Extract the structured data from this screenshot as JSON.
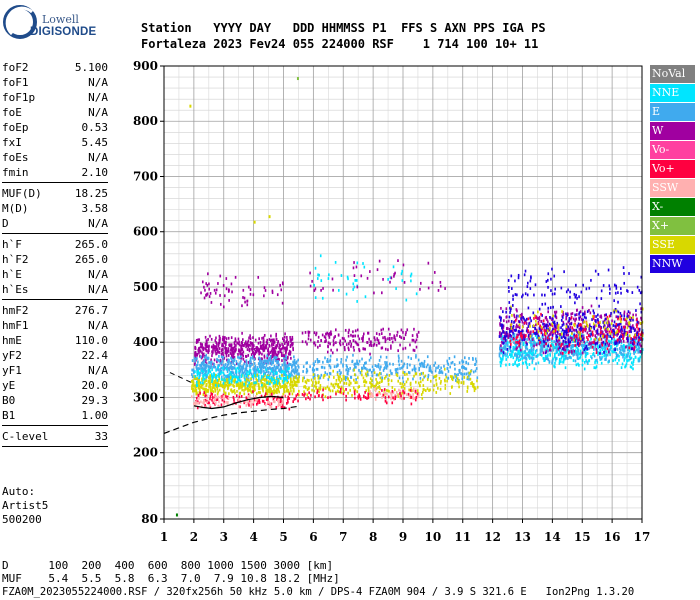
{
  "logo": {
    "line1": "Lowell",
    "line2": "DIGISONDE"
  },
  "header": {
    "line1": "Station   YYYY DAY   DDD HHMMSS P1  FFS S AXN PPS IGA PS",
    "line2": "Fortaleza 2023 Fev24 055 224000 RSF    1 714 100 10+ 11"
  },
  "params": {
    "group1": [
      {
        "label": "foF2",
        "value": "5.100"
      },
      {
        "label": "foF1",
        "value": "N/A"
      },
      {
        "label": "foF1p",
        "value": "N/A"
      },
      {
        "label": "foE",
        "value": "N/A"
      },
      {
        "label": "foEp",
        "value": "0.53"
      },
      {
        "label": "fxI",
        "value": "5.45"
      },
      {
        "label": "foEs",
        "value": "N/A"
      },
      {
        "label": "fmin",
        "value": "2.10"
      }
    ],
    "group2": [
      {
        "label": "MUF(D)",
        "value": "18.25"
      },
      {
        "label": "M(D)",
        "value": "3.58"
      },
      {
        "label": "D",
        "value": "N/A"
      }
    ],
    "group3": [
      {
        "label": "h`F",
        "value": "265.0"
      },
      {
        "label": "h`F2",
        "value": "265.0"
      },
      {
        "label": "h`E",
        "value": "N/A"
      },
      {
        "label": "h`Es",
        "value": "N/A"
      }
    ],
    "group4": [
      {
        "label": "hmF2",
        "value": "276.7"
      },
      {
        "label": "hmF1",
        "value": "N/A"
      },
      {
        "label": "hmE",
        "value": "110.0"
      },
      {
        "label": "yF2",
        "value": "22.4"
      },
      {
        "label": "yF1",
        "value": "N/A"
      },
      {
        "label": "yE",
        "value": "20.0"
      },
      {
        "label": "B0",
        "value": "29.3"
      },
      {
        "label": "B1",
        "value": "1.00"
      }
    ],
    "group5": [
      {
        "label": "C-level",
        "value": "33"
      }
    ]
  },
  "auto": {
    "line1": "Auto:",
    "line2": "Artist5",
    "line3": "500200"
  },
  "bottom": {
    "d_row": "D      100  200  400  600  800 1000 1500 3000 [km]",
    "muf_row": "MUF    5.4  5.5  5.8  6.3  7.0  7.9 10.8 18.2 [MHz]",
    "footer": "FZA0M_2023055224000.RSF / 320fx256h 50 kHz 5.0 km / DPS-4 FZA0M 904 / 3.9 S 321.6 E   Ion2Png 1.3.20"
  },
  "legend": [
    {
      "label": "NoVal",
      "color": "#808080"
    },
    {
      "label": "NNE",
      "color": "#00e5ff"
    },
    {
      "label": "E",
      "color": "#40aaee"
    },
    {
      "label": "W",
      "color": "#a000a0"
    },
    {
      "label": "Vo-",
      "color": "#ff40a0"
    },
    {
      "label": "Vo+",
      "color": "#ff0040"
    },
    {
      "label": "SSW",
      "color": "#ffb0b0"
    },
    {
      "label": "X-",
      "color": "#008000"
    },
    {
      "label": "X+",
      "color": "#80c040"
    },
    {
      "label": "SSE",
      "color": "#d8d800"
    },
    {
      "label": "NNW",
      "color": "#2000e0"
    }
  ],
  "chart_data": {
    "type": "scatter",
    "title": "",
    "xlabel": "",
    "ylabel": "",
    "xlim": [
      1,
      17
    ],
    "ylim": [
      80,
      900
    ],
    "x_ticks": [
      1,
      2,
      3,
      4,
      5,
      6,
      7,
      8,
      9,
      10,
      11,
      12,
      13,
      14,
      15,
      16,
      17
    ],
    "y_ticks": [
      80,
      200,
      300,
      400,
      500,
      600,
      700,
      800,
      900
    ],
    "grid": true,
    "legend_position": "right",
    "clusters": [
      {
        "name": "W",
        "x": [
          2.0,
          5.3
        ],
        "y": [
          360,
          420
        ],
        "n": 500
      },
      {
        "name": "E",
        "x": [
          1.9,
          5.5
        ],
        "y": [
          330,
          380
        ],
        "n": 500
      },
      {
        "name": "SSE",
        "x": [
          1.9,
          5.5
        ],
        "y": [
          305,
          345
        ],
        "n": 450
      },
      {
        "name": "NNE",
        "x": [
          2.0,
          5.2
        ],
        "y": [
          320,
          360
        ],
        "n": 150
      },
      {
        "name": "Vo+",
        "x": [
          2.0,
          5.5
        ],
        "y": [
          280,
          315
        ],
        "n": 120
      },
      {
        "name": "SSW",
        "x": [
          1.9,
          5.0
        ],
        "y": [
          280,
          310
        ],
        "n": 80
      },
      {
        "name": "W",
        "x": [
          2.2,
          5.0
        ],
        "y": [
          460,
          530
        ],
        "n": 60
      },
      {
        "name": "E",
        "x": [
          5.6,
          11.5
        ],
        "y": [
          330,
          380
        ],
        "n": 300
      },
      {
        "name": "SSE",
        "x": [
          5.6,
          11.5
        ],
        "y": [
          300,
          355
        ],
        "n": 280
      },
      {
        "name": "W",
        "x": [
          5.6,
          9.5
        ],
        "y": [
          380,
          430
        ],
        "n": 180
      },
      {
        "name": "SSW",
        "x": [
          7.8,
          9.5
        ],
        "y": [
          295,
          320
        ],
        "n": 60
      },
      {
        "name": "Vo+",
        "x": [
          5.6,
          9.5
        ],
        "y": [
          290,
          320
        ],
        "n": 70
      },
      {
        "name": "NNE",
        "x": [
          6.0,
          9.5
        ],
        "y": [
          470,
          560
        ],
        "n": 40
      },
      {
        "name": "W",
        "x": [
          5.8,
          10.5
        ],
        "y": [
          480,
          560
        ],
        "n": 40
      },
      {
        "name": "NNE",
        "x": [
          12.2,
          17
        ],
        "y": [
          350,
          420
        ],
        "n": 500
      },
      {
        "name": "E",
        "x": [
          12.2,
          17
        ],
        "y": [
          360,
          430
        ],
        "n": 350
      },
      {
        "name": "W",
        "x": [
          12.2,
          17
        ],
        "y": [
          380,
          470
        ],
        "n": 450
      },
      {
        "name": "NNW",
        "x": [
          12.2,
          17
        ],
        "y": [
          380,
          470
        ],
        "n": 300
      },
      {
        "name": "Vo+",
        "x": [
          12.5,
          17
        ],
        "y": [
          380,
          460
        ],
        "n": 120
      },
      {
        "name": "SSE",
        "x": [
          12.5,
          17
        ],
        "y": [
          400,
          470
        ],
        "n": 80
      },
      {
        "name": "NNW",
        "x": [
          12.5,
          17
        ],
        "y": [
          450,
          540
        ],
        "n": 100
      }
    ],
    "outliers": [
      {
        "name": "SSE",
        "x": 1.85,
        "y": 830
      },
      {
        "name": "X+",
        "x": 5.45,
        "y": 880
      },
      {
        "name": "X-",
        "x": 1.4,
        "y": 90
      },
      {
        "name": "SSE",
        "x": 4.0,
        "y": 620
      },
      {
        "name": "SSE",
        "x": 4.5,
        "y": 630
      }
    ],
    "trace_profile": {
      "name": "profile",
      "x": [
        1.0,
        1.5,
        2.0,
        2.5,
        3.0,
        3.5,
        4.0,
        4.5,
        5.0,
        5.5
      ],
      "y": [
        235,
        245,
        255,
        262,
        268,
        272,
        275,
        278,
        280,
        284
      ]
    },
    "trace_virtual": {
      "name": "virtual height",
      "x": [
        2.0,
        2.3,
        2.6,
        3.0,
        3.4,
        3.8,
        4.2,
        4.6,
        5.0
      ],
      "y": [
        285,
        282,
        280,
        283,
        290,
        296,
        300,
        302,
        300
      ]
    }
  }
}
